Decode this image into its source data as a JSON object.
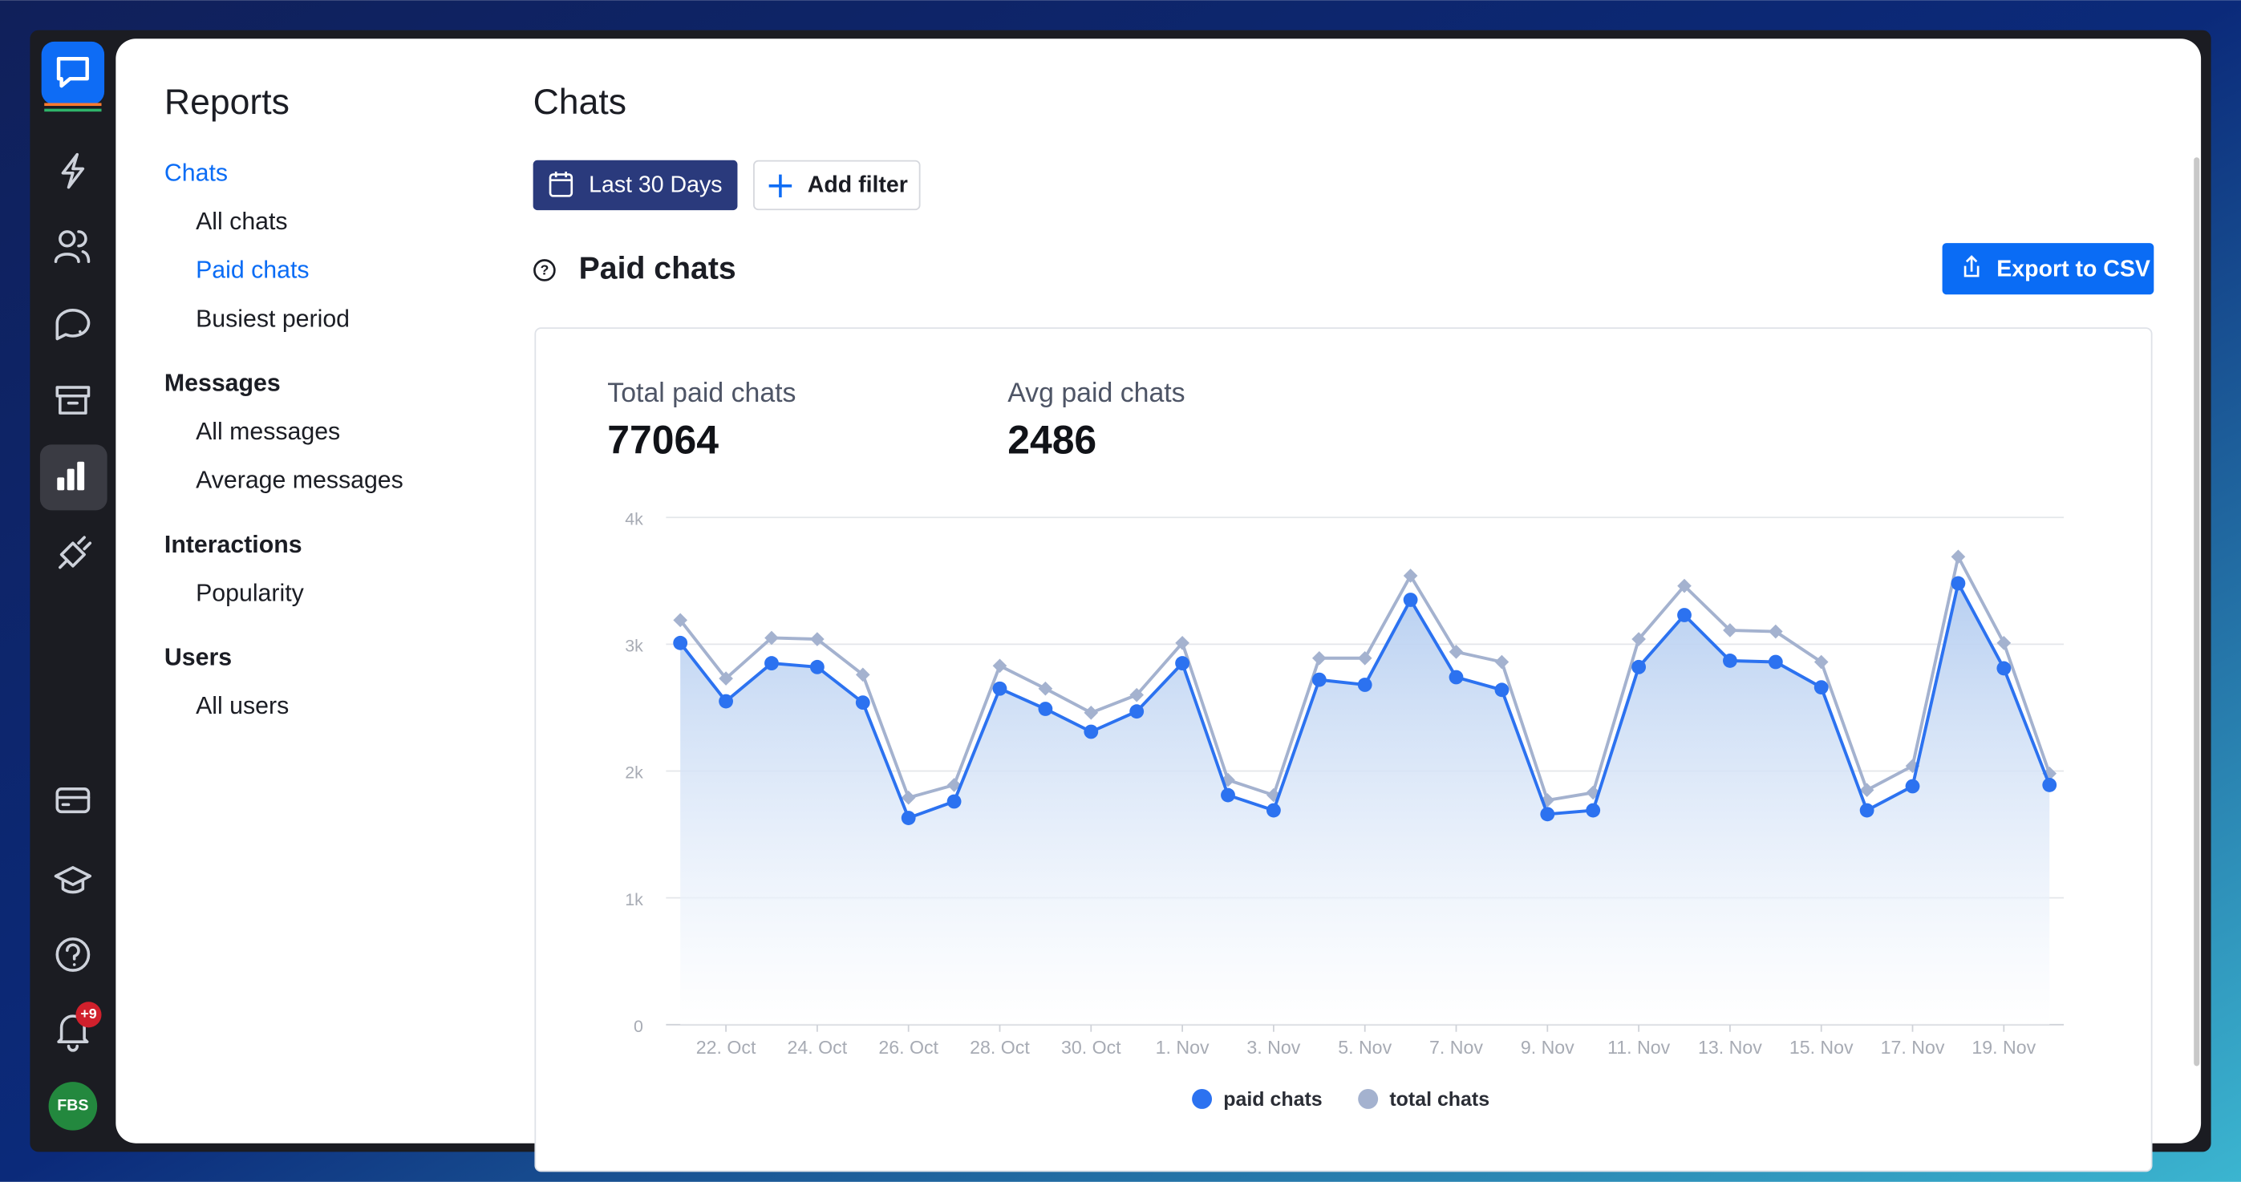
{
  "sidebar": {
    "badge": "+9",
    "avatar": "FBS"
  },
  "reports_menu": {
    "title": "Reports",
    "sections": [
      {
        "label": "Chats",
        "items": [
          "All chats",
          "Paid chats",
          "Busiest period"
        ]
      },
      {
        "label": "Messages",
        "items": [
          "All messages",
          "Average messages"
        ]
      },
      {
        "label": "Interactions",
        "items": [
          "Popularity"
        ]
      },
      {
        "label": "Users",
        "items": [
          "All users"
        ]
      }
    ]
  },
  "header": {
    "title": "Chats",
    "date_filter": "Last 30 Days",
    "add_filter": "Add filter",
    "export": "Export to CSV"
  },
  "report": {
    "title": "Paid chats",
    "stats": [
      {
        "label": "Total paid chats",
        "value": 77064
      },
      {
        "label": "Avg paid chats",
        "value": 2486
      }
    ]
  },
  "chart_data": {
    "type": "line",
    "categories": [
      null,
      "22. Oct",
      null,
      "24. Oct",
      null,
      "26. Oct",
      null,
      "28. Oct",
      null,
      "30. Oct",
      null,
      "1. Nov",
      null,
      "3. Nov",
      null,
      "5. Nov",
      null,
      "7. Nov",
      null,
      "9. Nov",
      null,
      "11. Nov",
      null,
      "13. Nov",
      null,
      "15. Nov",
      null,
      "17. Nov",
      null,
      "19. Nov",
      null
    ],
    "series": [
      {
        "name": "paid chats",
        "color": "#2c72f0",
        "values": [
          3010,
          2550,
          2850,
          2820,
          2540,
          1630,
          1760,
          2650,
          2490,
          2310,
          2470,
          2850,
          1810,
          1690,
          2720,
          2680,
          3350,
          2740,
          2640,
          1660,
          1690,
          2820,
          3230,
          2870,
          2860,
          2660,
          1690,
          1880,
          3480,
          2810,
          1890
        ]
      },
      {
        "name": "total chats",
        "color": "#a4b2cf",
        "values": [
          3190,
          2730,
          3050,
          3040,
          2760,
          1790,
          1890,
          2830,
          2650,
          2460,
          2600,
          3010,
          1930,
          1810,
          2890,
          2890,
          3540,
          2940,
          2860,
          1770,
          1830,
          3040,
          3460,
          3110,
          3100,
          2860,
          1850,
          2040,
          3690,
          3010,
          1980
        ]
      }
    ],
    "ylim": [
      0,
      4000
    ],
    "yticks": [
      0,
      {
        "value": 1000,
        "label": "1k"
      },
      {
        "value": 2000,
        "label": "2k"
      },
      {
        "value": 3000,
        "label": "3k"
      },
      {
        "value": 4000,
        "label": "4k"
      }
    ],
    "grid": true
  }
}
